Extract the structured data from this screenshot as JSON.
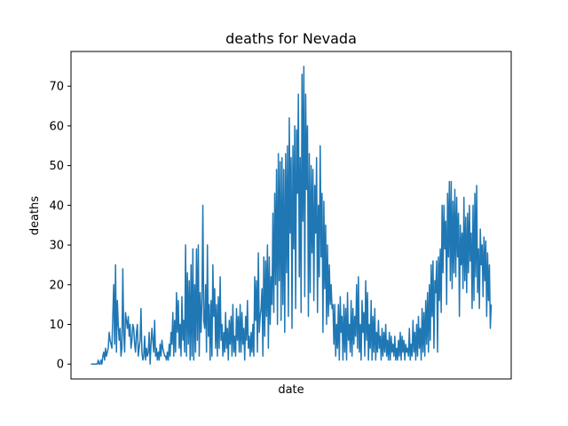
{
  "chart_data": {
    "type": "line",
    "title": "deaths for Nevada",
    "xlabel": "date",
    "ylabel": "deaths",
    "ylim": [
      -3.75,
      78.75
    ],
    "y_ticks": [
      0,
      10,
      20,
      30,
      40,
      50,
      60,
      70
    ],
    "x_ticks": [],
    "grid": false,
    "legend": "none",
    "colors": {
      "line": "#1f77b4",
      "axes": "#000000",
      "background": "#ffffff"
    },
    "series": [
      {
        "values": [
          0,
          0,
          0,
          0,
          0,
          0,
          0,
          0,
          1,
          0,
          0,
          1,
          0,
          2,
          3,
          1,
          4,
          2,
          3,
          4,
          8,
          6,
          5,
          4,
          12,
          20,
          5,
          25,
          3,
          16,
          10,
          6,
          9,
          2,
          4,
          24,
          8,
          3,
          13,
          11,
          9,
          12,
          7,
          10,
          4,
          6,
          10,
          9,
          5,
          3,
          8,
          10,
          2,
          4,
          6,
          14,
          3,
          1,
          2,
          7,
          1,
          4,
          2,
          3,
          8,
          0,
          5,
          9,
          6,
          3,
          11,
          2,
          4,
          1,
          3,
          1,
          5,
          2,
          6,
          4,
          3,
          2,
          2,
          1,
          3,
          1,
          5,
          2,
          8,
          5,
          13,
          2,
          11,
          3,
          18,
          8,
          16,
          4,
          10,
          2,
          17,
          6,
          11,
          3,
          30,
          2,
          23,
          5,
          21,
          1,
          25,
          2,
          29,
          1,
          20,
          3,
          29,
          6,
          30,
          2,
          18,
          8,
          16,
          40,
          11,
          9,
          20,
          3,
          30,
          7,
          15,
          1,
          16,
          2,
          25,
          12,
          19,
          4,
          15,
          2,
          17,
          4,
          22,
          6,
          10,
          2,
          8,
          3,
          13,
          4,
          9,
          1,
          11,
          5,
          12,
          2,
          15,
          3,
          7,
          2,
          14,
          6,
          12,
          3,
          15,
          3,
          13,
          5,
          9,
          1,
          12,
          6,
          16,
          4,
          7,
          2,
          8,
          3,
          10,
          2,
          22,
          11,
          21,
          3,
          28,
          8,
          12,
          14,
          19,
          2,
          27,
          7,
          26,
          12,
          30,
          4,
          27,
          10,
          22,
          15,
          38,
          13,
          43,
          20,
          49,
          10,
          53,
          21,
          51,
          11,
          52,
          15,
          49,
          8,
          53,
          23,
          55,
          12,
          62,
          33,
          52,
          9,
          55,
          29,
          60,
          14,
          59,
          43,
          68,
          22,
          52,
          13,
          73,
          36,
          75,
          17,
          68,
          44,
          60,
          12,
          53,
          18,
          50,
          28,
          49,
          16,
          45,
          33,
          52,
          13,
          40,
          22,
          55,
          27,
          43,
          8,
          41,
          19,
          35,
          10,
          30,
          12,
          25,
          15,
          20,
          14,
          15,
          5,
          15,
          2,
          10,
          4,
          15,
          1,
          17,
          8,
          12,
          1,
          15,
          3,
          14,
          1,
          18,
          6,
          10,
          3,
          16,
          2,
          14,
          5,
          12,
          7,
          20,
          4,
          22,
          3,
          10,
          1,
          16,
          8,
          13,
          2,
          21,
          6,
          18,
          1,
          10,
          4,
          16,
          1,
          12,
          3,
          14,
          1,
          8,
          3,
          11,
          4,
          7,
          1,
          9,
          2,
          8,
          3,
          10,
          2,
          6,
          1,
          8,
          1,
          7,
          3,
          5,
          2,
          7,
          1,
          4,
          1,
          6,
          2,
          8,
          1,
          7,
          3,
          6,
          1,
          5,
          3,
          4,
          2,
          9,
          1,
          5,
          2,
          11,
          3,
          8,
          1,
          10,
          2,
          12,
          4,
          9,
          1,
          14,
          3,
          13,
          2,
          16,
          5,
          18,
          3,
          20,
          6,
          25,
          12,
          26,
          4,
          21,
          18,
          26,
          3,
          27,
          16,
          29,
          13,
          40,
          23,
          40,
          29,
          36,
          15,
          43,
          27,
          46,
          21,
          46,
          19,
          41,
          23,
          44,
          22,
          42,
          27,
          38,
          12,
          35,
          25,
          33,
          19,
          42,
          21,
          37,
          18,
          38,
          23,
          40,
          26,
          33,
          14,
          40,
          16,
          43,
          22,
          45,
          18,
          29,
          14,
          34,
          25,
          30,
          17,
          32,
          21,
          31,
          12,
          28,
          16,
          25,
          9,
          15
        ]
      }
    ]
  }
}
